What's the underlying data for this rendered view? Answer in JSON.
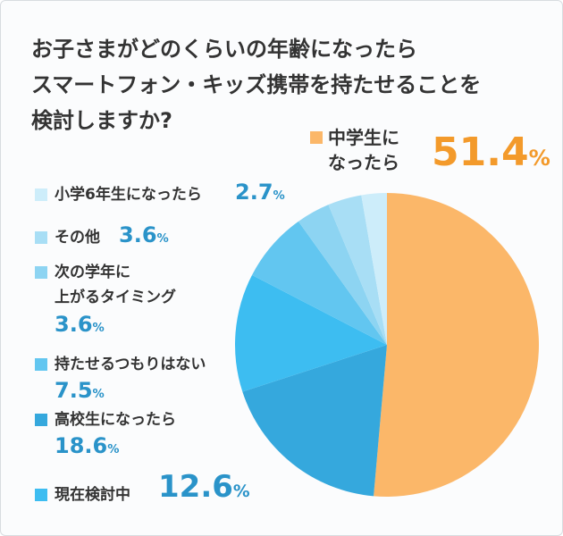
{
  "chart_data": {
    "type": "pie",
    "title": [
      "お子さまがどのくらいの年齢になったら",
      "スマートフォン・キッズ携帯を持たせることを",
      "検討しますか?"
    ],
    "categories": [
      "中学生に\nなったら",
      "高校生になったら",
      "現在検討中",
      "持たせるつもりはない",
      "次の学年に\n上がるタイミング",
      "その他",
      "小学6年生になったら"
    ],
    "values": [
      51.4,
      18.6,
      12.6,
      7.5,
      3.6,
      3.6,
      2.7
    ],
    "value_labels": [
      "51.4%",
      "18.6%",
      "12.6%",
      "7.5%",
      "3.6%",
      "3.6%",
      "2.7%"
    ],
    "colors": [
      "#fbb769",
      "#35a8dd",
      "#3dbdf1",
      "#62c6f0",
      "#8dd4f2",
      "#a8def5",
      "#cdedfa"
    ]
  }
}
